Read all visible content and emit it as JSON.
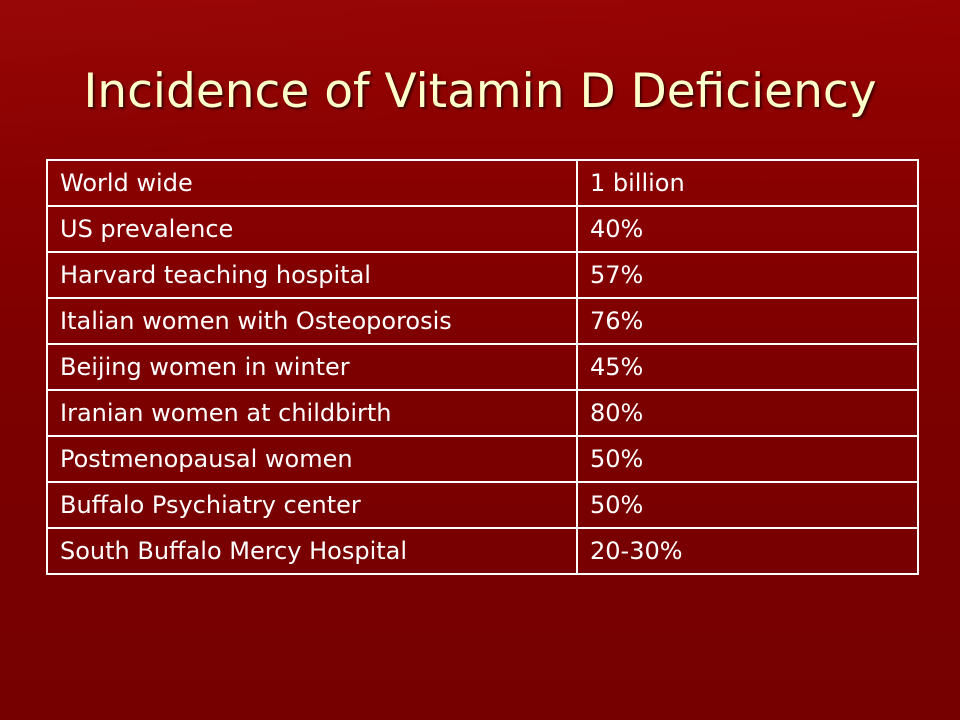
{
  "title": "Incidence of Vitamin D Deficiency",
  "table": {
    "rows": [
      {
        "label": "World wide",
        "value": "1 billion"
      },
      {
        "label": "US prevalence",
        "value": "40%"
      },
      {
        "label": "Harvard teaching hospital",
        "value": "57%"
      },
      {
        "label": "Italian women with Osteoporosis",
        "value": "76%"
      },
      {
        "label": "Beijing women in winter",
        "value": "45%"
      },
      {
        "label": "Iranian women at childbirth",
        "value": "80%"
      },
      {
        "label": "Postmenopausal women",
        "value": "50%"
      },
      {
        "label": "Buffalo Psychiatry center",
        "value": "50%"
      },
      {
        "label": "South Buffalo Mercy Hospital",
        "value": "20-30%"
      }
    ]
  },
  "colors": {
    "background": "#7a0000",
    "title_text": "#ffffcc",
    "table_text": "#ffffff",
    "table_border": "#ffffff"
  }
}
